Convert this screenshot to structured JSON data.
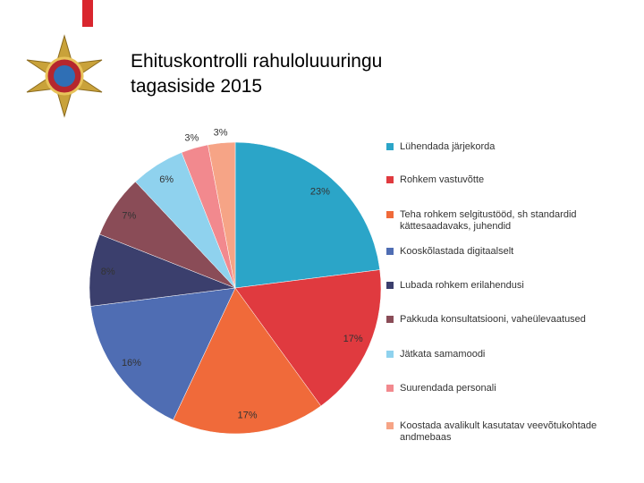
{
  "chart_data": {
    "type": "pie",
    "title": "Ehituskontrolli rahuloluuuringu tagasiside 2015",
    "categories": [
      "Lühendada järjekorda",
      "Rohkem vastuvõtte",
      "Teha rohkem selgitustööd, sh standardid kättesaadavaks, juhendid",
      "Kooskõlastada digitaalselt",
      "Lubada rohkem erilahendusi",
      "Pakkuda konsultatsiooni, vaheülevaatused",
      "Jätkata samamoodi",
      "Suurendada personali",
      "Koostada avalikult kasutatav veevõtukohtade andmebaas"
    ],
    "values": [
      23,
      17,
      17,
      16,
      8,
      7,
      6,
      3,
      3
    ],
    "value_labels": [
      "23%",
      "17%",
      "17%",
      "16%",
      "8%",
      "7%",
      "6%",
      "3%",
      "3%"
    ],
    "colors": [
      "#2ba5c8",
      "#e03a3f",
      "#f06a3a",
      "#4f6db3",
      "#3b3f6d",
      "#8a4c57",
      "#8fd2ee",
      "#f2898e",
      "#f6a486"
    ],
    "legend": "right"
  }
}
